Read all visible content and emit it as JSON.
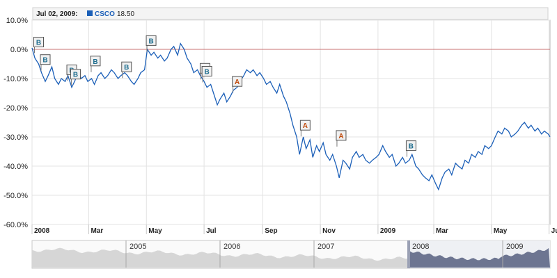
{
  "legend": {
    "date": "Jul 02, 2009:",
    "series_name": "CSCO",
    "series_value": "18.50",
    "series_color": "#1b5fb8"
  },
  "chart_data": {
    "type": "line",
    "series_name": "CSCO",
    "y_unit": "%",
    "ylim": [
      -60,
      10
    ],
    "yticks": [
      {
        "value": 10,
        "label": "10.0%"
      },
      {
        "value": 0,
        "label": "0.0%"
      },
      {
        "value": -10,
        "label": "-10.0%"
      },
      {
        "value": -20,
        "label": "-20.0%"
      },
      {
        "value": -30,
        "label": "-30.0%"
      },
      {
        "value": -40,
        "label": "-40.0%"
      },
      {
        "value": -50,
        "label": "-50.0%"
      },
      {
        "value": -60,
        "label": "-60.0%"
      }
    ],
    "xlim": [
      "2008-01-01",
      "2009-07-02"
    ],
    "xticks": [
      {
        "date": "2008-01-01",
        "label": "2008"
      },
      {
        "date": "2008-03-01",
        "label": "Mar"
      },
      {
        "date": "2008-05-01",
        "label": "May"
      },
      {
        "date": "2008-07-01",
        "label": "Jul"
      },
      {
        "date": "2008-09-01",
        "label": "Sep"
      },
      {
        "date": "2008-11-01",
        "label": "Nov"
      },
      {
        "date": "2009-01-01",
        "label": "2009"
      },
      {
        "date": "2009-03-01",
        "label": "Mar"
      },
      {
        "date": "2009-05-01",
        "label": "May"
      },
      {
        "date": "2009-07-01",
        "label": "Jul"
      }
    ],
    "grid": true,
    "baseline": 0,
    "points": [
      [
        "2008-01-01",
        0.5
      ],
      [
        "2008-01-04",
        -3
      ],
      [
        "2008-01-08",
        -5
      ],
      [
        "2008-01-11",
        -8
      ],
      [
        "2008-01-15",
        -11
      ],
      [
        "2008-01-18",
        -9
      ],
      [
        "2008-01-22",
        -6
      ],
      [
        "2008-01-25",
        -10
      ],
      [
        "2008-01-29",
        -12
      ],
      [
        "2008-02-01",
        -10
      ],
      [
        "2008-02-05",
        -11
      ],
      [
        "2008-02-08",
        -9
      ],
      [
        "2008-02-12",
        -13
      ],
      [
        "2008-02-15",
        -11
      ],
      [
        "2008-02-19",
        -8
      ],
      [
        "2008-02-22",
        -10
      ],
      [
        "2008-02-26",
        -9
      ],
      [
        "2008-02-29",
        -11
      ],
      [
        "2008-03-04",
        -10
      ],
      [
        "2008-03-07",
        -12
      ],
      [
        "2008-03-11",
        -9
      ],
      [
        "2008-03-14",
        -8
      ],
      [
        "2008-03-18",
        -10
      ],
      [
        "2008-03-21",
        -9
      ],
      [
        "2008-03-25",
        -7
      ],
      [
        "2008-03-28",
        -8
      ],
      [
        "2008-04-01",
        -10
      ],
      [
        "2008-04-04",
        -9
      ],
      [
        "2008-04-08",
        -8
      ],
      [
        "2008-04-11",
        -9
      ],
      [
        "2008-04-15",
        -11
      ],
      [
        "2008-04-18",
        -12
      ],
      [
        "2008-04-22",
        -10
      ],
      [
        "2008-04-25",
        -8
      ],
      [
        "2008-04-29",
        -7
      ],
      [
        "2008-05-02",
        0
      ],
      [
        "2008-05-06",
        -2
      ],
      [
        "2008-05-09",
        -1
      ],
      [
        "2008-05-13",
        -3
      ],
      [
        "2008-05-16",
        -2
      ],
      [
        "2008-05-20",
        -4
      ],
      [
        "2008-05-23",
        -3
      ],
      [
        "2008-05-27",
        0
      ],
      [
        "2008-05-30",
        1
      ],
      [
        "2008-06-03",
        -2
      ],
      [
        "2008-06-06",
        2
      ],
      [
        "2008-06-10",
        0
      ],
      [
        "2008-06-13",
        -3
      ],
      [
        "2008-06-17",
        -5
      ],
      [
        "2008-06-20",
        -8
      ],
      [
        "2008-06-24",
        -7
      ],
      [
        "2008-06-27",
        -9
      ],
      [
        "2008-07-01",
        -11
      ],
      [
        "2008-07-04",
        -13
      ],
      [
        "2008-07-08",
        -12
      ],
      [
        "2008-07-11",
        -15
      ],
      [
        "2008-07-15",
        -19
      ],
      [
        "2008-07-18",
        -17
      ],
      [
        "2008-07-22",
        -15
      ],
      [
        "2008-07-25",
        -18
      ],
      [
        "2008-07-29",
        -16
      ],
      [
        "2008-08-01",
        -14
      ],
      [
        "2008-08-05",
        -13
      ],
      [
        "2008-08-08",
        -11
      ],
      [
        "2008-08-12",
        -9
      ],
      [
        "2008-08-15",
        -7
      ],
      [
        "2008-08-19",
        -8
      ],
      [
        "2008-08-22",
        -7
      ],
      [
        "2008-08-26",
        -9
      ],
      [
        "2008-08-29",
        -8
      ],
      [
        "2008-09-02",
        -10
      ],
      [
        "2008-09-05",
        -12
      ],
      [
        "2008-09-09",
        -11
      ],
      [
        "2008-09-12",
        -13
      ],
      [
        "2008-09-16",
        -15
      ],
      [
        "2008-09-19",
        -12
      ],
      [
        "2008-09-23",
        -16
      ],
      [
        "2008-09-26",
        -18
      ],
      [
        "2008-09-30",
        -22
      ],
      [
        "2008-10-03",
        -26
      ],
      [
        "2008-10-07",
        -30
      ],
      [
        "2008-10-10",
        -36
      ],
      [
        "2008-10-14",
        -30
      ],
      [
        "2008-10-17",
        -34
      ],
      [
        "2008-10-21",
        -31
      ],
      [
        "2008-10-24",
        -37
      ],
      [
        "2008-10-28",
        -33
      ],
      [
        "2008-10-31",
        -35
      ],
      [
        "2008-11-04",
        -32
      ],
      [
        "2008-11-07",
        -36
      ],
      [
        "2008-11-11",
        -38
      ],
      [
        "2008-11-14",
        -36
      ],
      [
        "2008-11-18",
        -40
      ],
      [
        "2008-11-21",
        -44
      ],
      [
        "2008-11-25",
        -38
      ],
      [
        "2008-11-28",
        -39
      ],
      [
        "2008-12-02",
        -41
      ],
      [
        "2008-12-05",
        -37
      ],
      [
        "2008-12-09",
        -35
      ],
      [
        "2008-12-12",
        -37
      ],
      [
        "2008-12-16",
        -36
      ],
      [
        "2008-12-19",
        -38
      ],
      [
        "2008-12-23",
        -39
      ],
      [
        "2008-12-26",
        -38
      ],
      [
        "2008-12-30",
        -37
      ],
      [
        "2009-01-02",
        -36
      ],
      [
        "2009-01-06",
        -33
      ],
      [
        "2009-01-09",
        -35
      ],
      [
        "2009-01-13",
        -37
      ],
      [
        "2009-01-16",
        -36
      ],
      [
        "2009-01-20",
        -40
      ],
      [
        "2009-01-23",
        -39
      ],
      [
        "2009-01-27",
        -37
      ],
      [
        "2009-01-30",
        -39
      ],
      [
        "2009-02-03",
        -38
      ],
      [
        "2009-02-06",
        -36
      ],
      [
        "2009-02-10",
        -40
      ],
      [
        "2009-02-13",
        -41
      ],
      [
        "2009-02-17",
        -43
      ],
      [
        "2009-02-20",
        -44
      ],
      [
        "2009-02-24",
        -45
      ],
      [
        "2009-02-27",
        -43
      ],
      [
        "2009-03-03",
        -46
      ],
      [
        "2009-03-06",
        -48
      ],
      [
        "2009-03-10",
        -44
      ],
      [
        "2009-03-13",
        -42
      ],
      [
        "2009-03-17",
        -41
      ],
      [
        "2009-03-20",
        -43
      ],
      [
        "2009-03-24",
        -39
      ],
      [
        "2009-03-27",
        -40
      ],
      [
        "2009-03-31",
        -41
      ],
      [
        "2009-04-03",
        -38
      ],
      [
        "2009-04-07",
        -39
      ],
      [
        "2009-04-10",
        -36
      ],
      [
        "2009-04-14",
        -37
      ],
      [
        "2009-04-17",
        -35
      ],
      [
        "2009-04-21",
        -36
      ],
      [
        "2009-04-24",
        -33
      ],
      [
        "2009-04-28",
        -34
      ],
      [
        "2009-05-01",
        -33
      ],
      [
        "2009-05-05",
        -30
      ],
      [
        "2009-05-08",
        -28
      ],
      [
        "2009-05-12",
        -29
      ],
      [
        "2009-05-15",
        -27
      ],
      [
        "2009-05-19",
        -28
      ],
      [
        "2009-05-22",
        -30
      ],
      [
        "2009-05-26",
        -29
      ],
      [
        "2009-05-29",
        -28
      ],
      [
        "2009-06-02",
        -26
      ],
      [
        "2009-06-05",
        -25
      ],
      [
        "2009-06-09",
        -27
      ],
      [
        "2009-06-12",
        -26
      ],
      [
        "2009-06-16",
        -28
      ],
      [
        "2009-06-19",
        -27
      ],
      [
        "2009-06-23",
        -29
      ],
      [
        "2009-06-26",
        -28
      ],
      [
        "2009-06-30",
        -29
      ],
      [
        "2009-07-02",
        -30
      ]
    ],
    "flags": [
      {
        "date": "2008-01-08",
        "y": 2.5,
        "letter": "B"
      },
      {
        "date": "2008-01-15",
        "y": -3.5,
        "letter": "B"
      },
      {
        "date": "2008-02-12",
        "y": -7,
        "letter": "B"
      },
      {
        "date": "2008-02-16",
        "y": -8.5,
        "letter": "B"
      },
      {
        "date": "2008-03-08",
        "y": -4,
        "letter": "B"
      },
      {
        "date": "2008-04-10",
        "y": -6,
        "letter": "B"
      },
      {
        "date": "2008-05-06",
        "y": 3,
        "letter": "B"
      },
      {
        "date": "2008-07-02",
        "y": -6.5,
        "letter": "B"
      },
      {
        "date": "2008-07-04",
        "y": -7.5,
        "letter": "B"
      },
      {
        "date": "2008-08-05",
        "y": -11,
        "letter": "A"
      },
      {
        "date": "2008-10-16",
        "y": -26,
        "letter": "A"
      },
      {
        "date": "2008-11-23",
        "y": -29.5,
        "letter": "A"
      },
      {
        "date": "2009-02-05",
        "y": -33,
        "letter": "B"
      }
    ],
    "flag_colors": {
      "B": "#1f6e8f",
      "A": "#c04a0c"
    },
    "navigator": {
      "labels": [
        "2005",
        "2006",
        "2007",
        "2008",
        "2009"
      ],
      "selected_labels": [
        "2008",
        "2009"
      ],
      "history_fill": "#d6d6d6",
      "selected_fill": "#6d7591"
    }
  }
}
